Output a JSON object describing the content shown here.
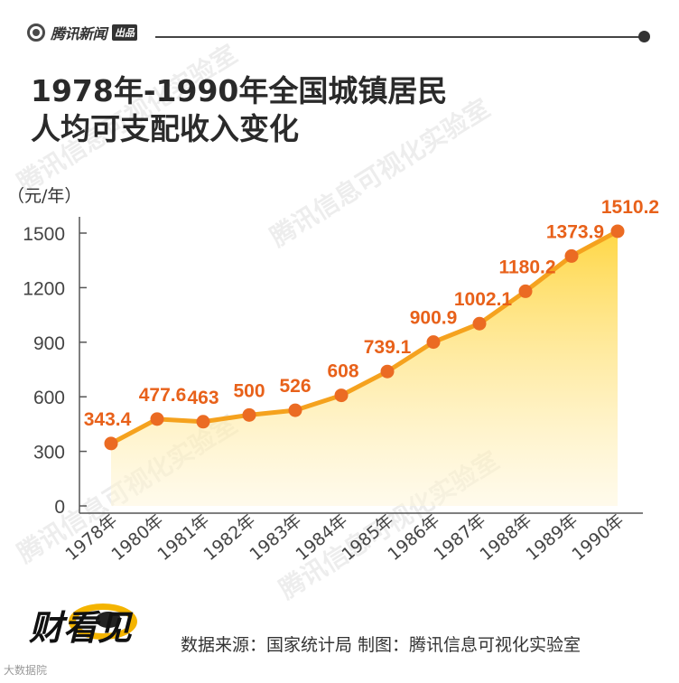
{
  "brand": {
    "name": "腾讯新闻",
    "sub": "出品"
  },
  "title_line1": "1978年-1990年全国城镇居民",
  "title_line2": "人均可支配收入变化",
  "unit": "（元/年）",
  "watermark": "腾讯信息可视化实验室",
  "source": "数据来源：国家统计局  制图：腾讯信息可视化实验室",
  "footer_logo": "财看见",
  "corner_mark": "大数据院",
  "colors": {
    "line": "#f5a21e",
    "point": "#eb6b23",
    "label": "#e8611a",
    "area_top": "#ffd53c",
    "area_bottom": "#fff6d8"
  },
  "chart_data": {
    "type": "line",
    "title": "1978年-1990年全国城镇居民人均可支配收入变化",
    "ylabel": "（元/年）",
    "xlabel": "",
    "categories": [
      "1978年",
      "1980年",
      "1981年",
      "1982年",
      "1983年",
      "1984年",
      "1985年",
      "1986年",
      "1987年",
      "1988年",
      "1989年",
      "1990年"
    ],
    "values": [
      343.4,
      477.6,
      463,
      500,
      526,
      608,
      739.1,
      900.9,
      1002.1,
      1180.2,
      1373.9,
      1510.2
    ],
    "data_labels": [
      "343.4",
      "477.6",
      "463",
      "500",
      "526",
      "608",
      "739.1",
      "900.9",
      "1002.1",
      "1180.2",
      "1373.9",
      "1510.2"
    ],
    "yticks": [
      0,
      300,
      600,
      900,
      1200,
      1500
    ],
    "ylim": [
      0,
      1500
    ],
    "grid": false,
    "area_fill": true
  }
}
